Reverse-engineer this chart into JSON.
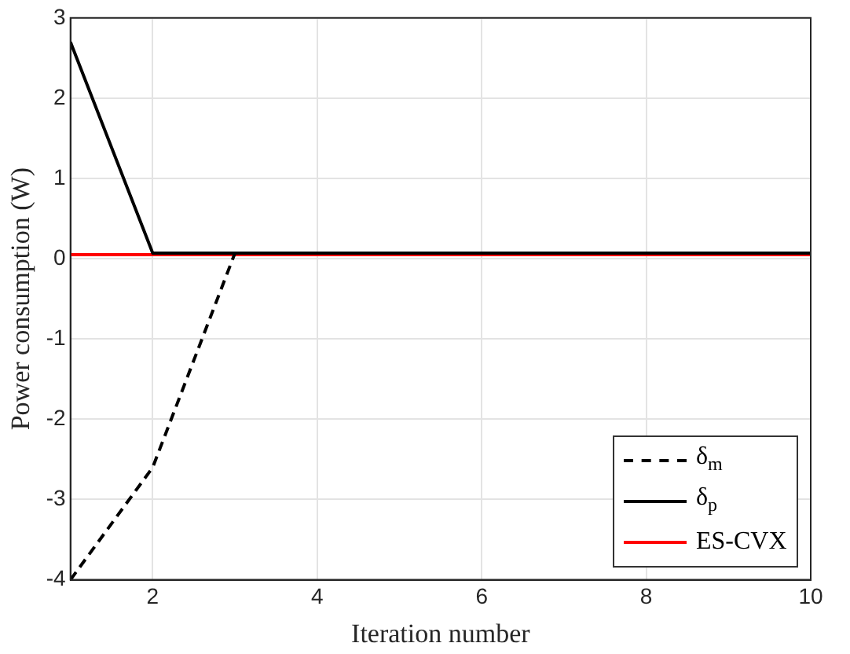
{
  "chart_data": {
    "type": "line",
    "xlabel": "Iteration number",
    "ylabel": "Power consumption (W)",
    "x": [
      1,
      2,
      3,
      4,
      5,
      6,
      7,
      8,
      9,
      10
    ],
    "series": [
      {
        "name": "δ$_{m}$",
        "color": "#000000",
        "line_style": "dashed",
        "values": [
          -4,
          -2.6,
          0.07,
          0.07,
          0.07,
          0.07,
          0.07,
          0.07,
          0.07,
          0.07
        ]
      },
      {
        "name": "δ$_{p}$",
        "color": "#000000",
        "line_style": "solid",
        "values": [
          2.7,
          0.07,
          0.07,
          0.07,
          0.07,
          0.07,
          0.07,
          0.07,
          0.07,
          0.07
        ]
      },
      {
        "name": "ES-CVX",
        "color": "#ff0000",
        "line_style": "solid",
        "values": [
          0.05,
          0.05,
          0.05,
          0.05,
          0.05,
          0.05,
          0.05,
          0.05,
          0.05,
          0.05
        ]
      }
    ],
    "xlim": [
      1,
      10
    ],
    "xticks": [
      2,
      4,
      6,
      8,
      10
    ],
    "ylim": [
      -4,
      3
    ],
    "yticks": [
      -4,
      -3,
      -2,
      -1,
      0,
      1,
      2,
      3
    ],
    "grid": true,
    "legend": "bottom right",
    "marker": "none"
  }
}
